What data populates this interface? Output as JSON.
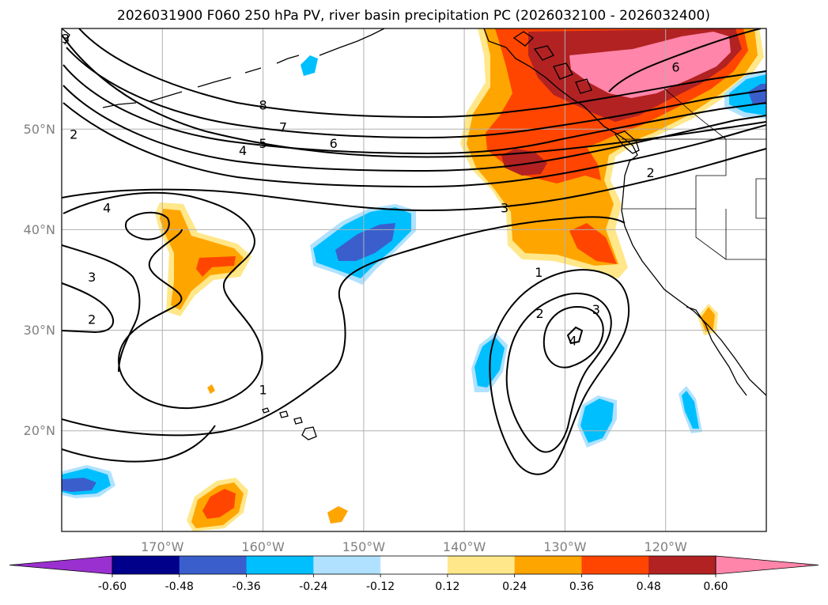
{
  "chart_data": {
    "type": "contour_map",
    "title": "2026031900 F060 250 hPa PV, river basin precipitation PC (2026032100 - 2026032400)",
    "projection": "equirectangular",
    "lon_range": [
      -180,
      -110
    ],
    "lat_range": [
      10,
      60
    ],
    "x_ticks": [
      {
        "lon": -170,
        "label": "170°W"
      },
      {
        "lon": -160,
        "label": "160°W"
      },
      {
        "lon": -150,
        "label": "150°W"
      },
      {
        "lon": -140,
        "label": "140°W"
      },
      {
        "lon": -130,
        "label": "130°W"
      },
      {
        "lon": -120,
        "label": "120°W"
      }
    ],
    "y_ticks": [
      {
        "lat": 20,
        "label": "20°N"
      },
      {
        "lat": 30,
        "label": "30°N"
      },
      {
        "lat": 40,
        "label": "40°N"
      },
      {
        "lat": 50,
        "label": "50°N"
      }
    ],
    "colorbar": {
      "levels": [
        "-0.60",
        "-0.48",
        "-0.36",
        "-0.24",
        "-0.12",
        "0.12",
        "0.24",
        "0.36",
        "0.48",
        "0.60"
      ],
      "colors": [
        "#9b30d0",
        "#00008b",
        "#3a5fcd",
        "#00bfff",
        "#b0e2ff",
        "#ffffff",
        "#ffe78a",
        "#ffa500",
        "#ff4500",
        "#b22222",
        "#ff85aa"
      ],
      "extend": "both"
    },
    "pv_contour_labels": [
      {
        "text": "8",
        "lon": -160,
        "lat": 52.4
      },
      {
        "text": "7",
        "lon": -158,
        "lat": 50.2
      },
      {
        "text": "5",
        "lon": -160,
        "lat": 48.6
      },
      {
        "text": "4",
        "lon": -162,
        "lat": 47.9
      },
      {
        "text": "6",
        "lon": -153,
        "lat": 48.6
      },
      {
        "text": "3",
        "lon": -136,
        "lat": 42.2
      },
      {
        "text": "2",
        "lon": -121.5,
        "lat": 45.7
      },
      {
        "text": "6",
        "lon": -119,
        "lat": 56.2
      },
      {
        "text": "4",
        "lon": -175.5,
        "lat": 42.2
      },
      {
        "text": "3",
        "lon": -177,
        "lat": 35.3
      },
      {
        "text": "2",
        "lon": -177,
        "lat": 31.1
      },
      {
        "text": "2",
        "lon": -178.8,
        "lat": 49.5
      },
      {
        "text": "1",
        "lon": -160,
        "lat": 24.1
      },
      {
        "text": "1",
        "lon": -132.6,
        "lat": 35.8
      },
      {
        "text": "2",
        "lon": -132.5,
        "lat": 31.7
      },
      {
        "text": "3",
        "lon": -126.9,
        "lat": 32.1
      },
      {
        "text": "4",
        "lon": -129.2,
        "lat": 29
      },
      {
        "text": "3",
        "lon": -179.6,
        "lat": 59
      }
    ]
  }
}
